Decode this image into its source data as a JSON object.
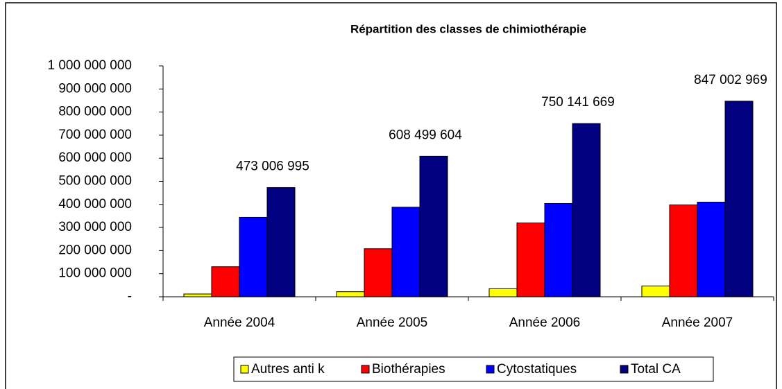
{
  "chart_data": {
    "type": "bar",
    "title": "Répartition des classes de chimiothérapie",
    "categories": [
      "Année 2004",
      "Année 2005",
      "Année 2006",
      "Année 2007"
    ],
    "series": [
      {
        "name": "Autres anti k",
        "color": "#ffff00",
        "values": [
          12000000,
          22000000,
          35000000,
          47000000
        ]
      },
      {
        "name": "Biothérapies",
        "color": "#ff0000",
        "values": [
          130000000,
          208000000,
          320000000,
          398000000
        ]
      },
      {
        "name": "Cytostatiques",
        "color": "#0000ff",
        "values": [
          344000000,
          388000000,
          404000000,
          410000000
        ]
      },
      {
        "name": "Total CA",
        "color": "#000080",
        "values": [
          473006995,
          608499604,
          750141669,
          847002969
        ],
        "value_labels": [
          "473 006 995",
          "608 499 604",
          "750 141 669",
          "847 002 969"
        ]
      }
    ],
    "ylim": [
      0,
      1000000000
    ],
    "yticks": [
      {
        "value": 0,
        "label": "-"
      },
      {
        "value": 100000000,
        "label": "100 000 000"
      },
      {
        "value": 200000000,
        "label": "200 000 000"
      },
      {
        "value": 300000000,
        "label": "300 000 000"
      },
      {
        "value": 400000000,
        "label": "400 000 000"
      },
      {
        "value": 500000000,
        "label": "500 000 000"
      },
      {
        "value": 600000000,
        "label": "600 000 000"
      },
      {
        "value": 700000000,
        "label": "700 000 000"
      },
      {
        "value": 800000000,
        "label": "800 000 000"
      },
      {
        "value": 900000000,
        "label": "900 000 000"
      },
      {
        "value": 1000000000,
        "label": "1 000 000 000"
      }
    ],
    "grid": false,
    "legend": "bottom"
  }
}
